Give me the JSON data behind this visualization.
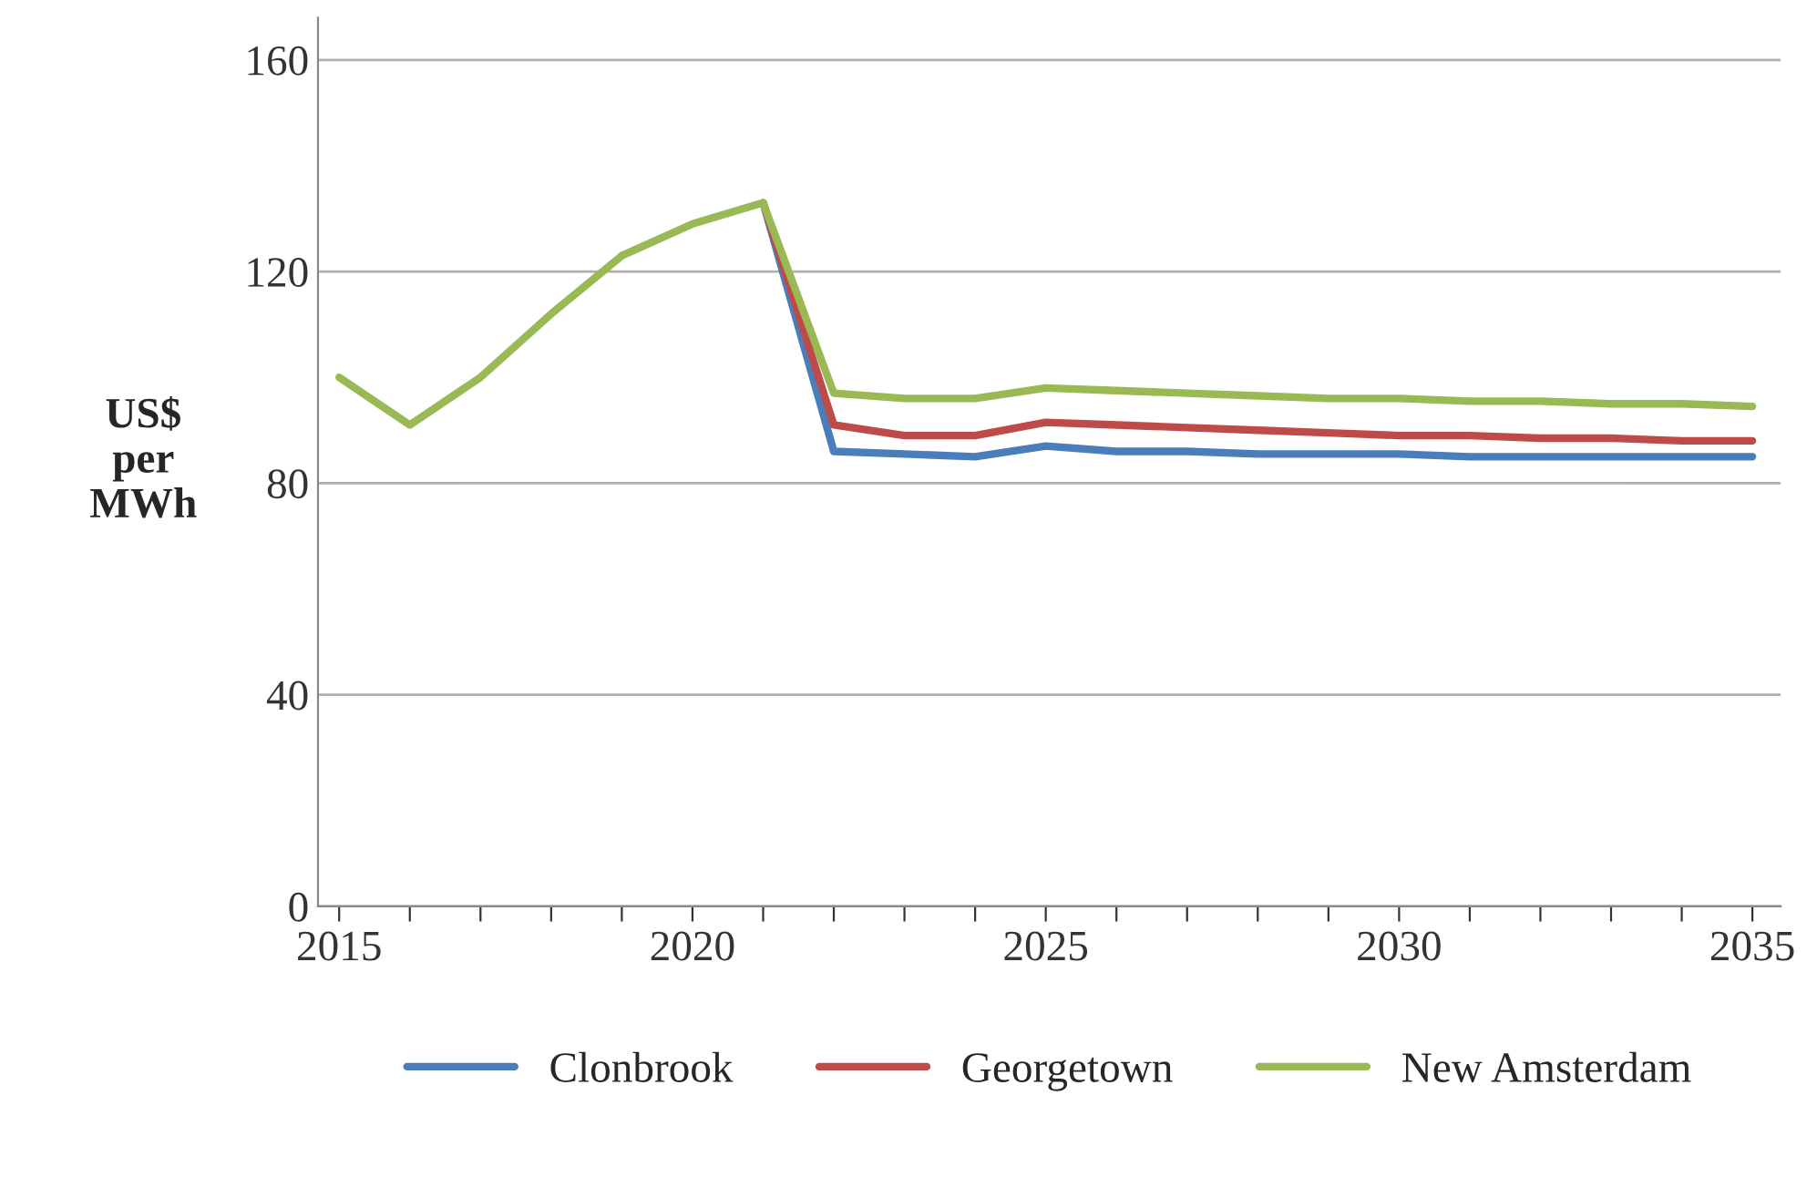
{
  "chart_data": {
    "type": "line",
    "ylabel": "US$\nper\nMWh",
    "x": [
      2015,
      2016,
      2017,
      2018,
      2019,
      2020,
      2021,
      2022,
      2023,
      2024,
      2025,
      2026,
      2027,
      2028,
      2029,
      2030,
      2031,
      2032,
      2033,
      2034,
      2035
    ],
    "series": [
      {
        "name": "Clonbrook",
        "color": "#4a7ebb",
        "values": [
          null,
          null,
          null,
          null,
          null,
          null,
          133,
          86,
          85.5,
          85,
          87,
          86,
          86,
          85.5,
          85.5,
          85.5,
          85,
          85,
          85,
          85,
          85
        ]
      },
      {
        "name": "Georgetown",
        "color": "#be4b48",
        "values": [
          null,
          null,
          null,
          null,
          null,
          null,
          133,
          91,
          89,
          89,
          91.5,
          91,
          90.5,
          90,
          89.5,
          89,
          89,
          88.5,
          88.5,
          88,
          88
        ]
      },
      {
        "name": "New Amsterdam",
        "color": "#98b954",
        "values": [
          100,
          91,
          100,
          112,
          123,
          129,
          133,
          97,
          96,
          96,
          98,
          97.5,
          97,
          96.5,
          96,
          96,
          95.5,
          95.5,
          95,
          95,
          94.5
        ]
      }
    ],
    "xlim": [
      2014.7,
      2035.4
    ],
    "xticks": [
      2015,
      {
        "value": 2016,
        "label": null
      },
      {
        "value": 2017,
        "label": null
      },
      {
        "value": 2018,
        "label": null
      },
      {
        "value": 2019,
        "label": null
      },
      2020,
      {
        "value": 2021,
        "label": null
      },
      {
        "value": 2022,
        "label": null
      },
      {
        "value": 2023,
        "label": null
      },
      {
        "value": 2024,
        "label": null
      },
      2025,
      {
        "value": 2026,
        "label": null
      },
      {
        "value": 2027,
        "label": null
      },
      {
        "value": 2028,
        "label": null
      },
      {
        "value": 2029,
        "label": null
      },
      2030,
      {
        "value": 2031,
        "label": null
      },
      {
        "value": 2032,
        "label": null
      },
      {
        "value": 2033,
        "label": null
      },
      {
        "value": 2034,
        "label": null
      },
      2035
    ],
    "ylim": [
      0,
      168
    ],
    "yticks": [
      0,
      40,
      80,
      120,
      160
    ],
    "grid": "y",
    "legend": "bottom",
    "marker": "none",
    "line_style": "solid"
  }
}
